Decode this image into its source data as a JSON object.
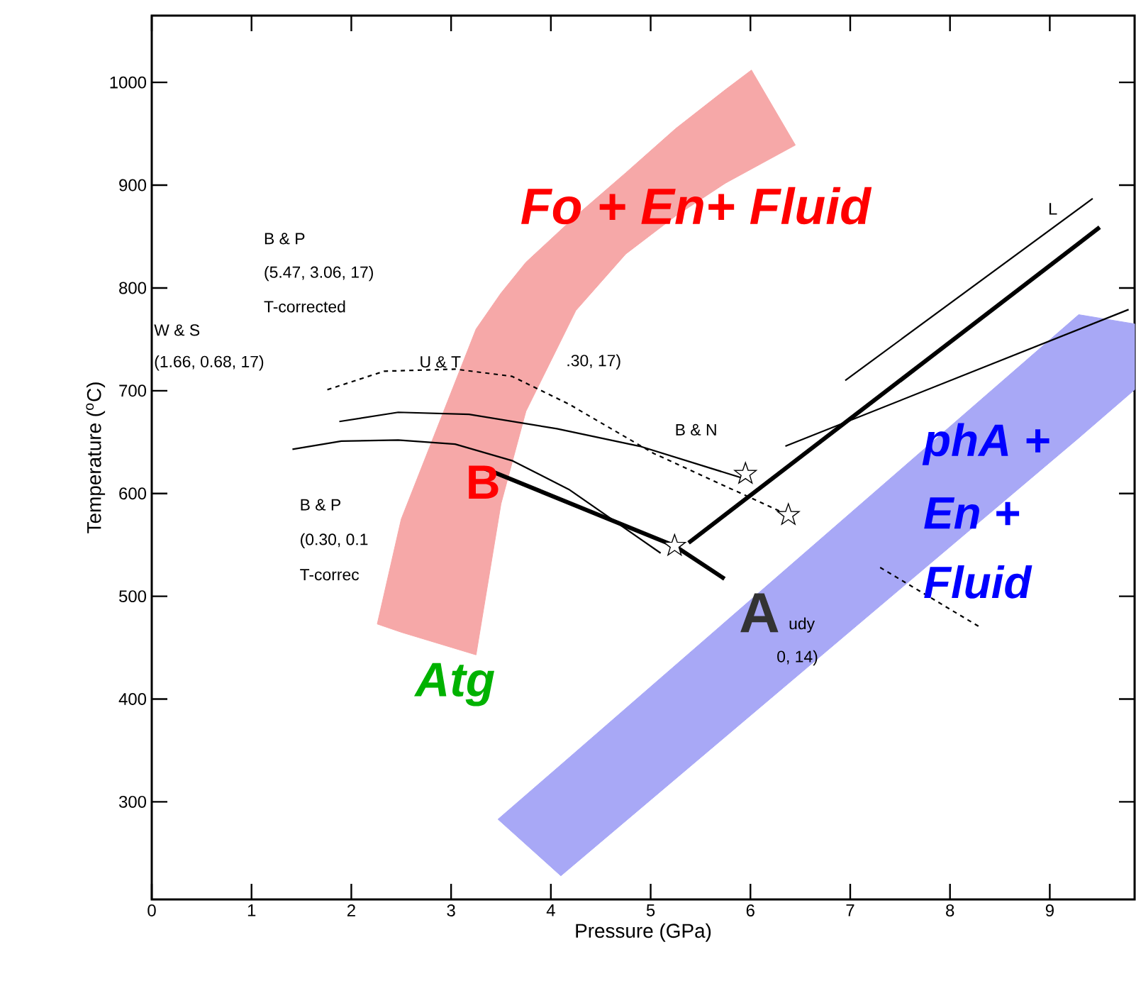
{
  "chart_data": {
    "type": "line",
    "xlabel": "Pressure (GPa)",
    "ylabel": "Temperature ($^{o}$C)",
    "xlim": [
      0,
      9.85
    ],
    "ylim": [
      205,
      1065
    ],
    "xticks": [
      0,
      1,
      2,
      3,
      4,
      5,
      6,
      7,
      8,
      9
    ],
    "yticks": [
      300,
      400,
      500,
      600,
      700,
      800,
      900,
      1000
    ],
    "series": [
      {
        "type": "area",
        "color": "#f6a8a8",
        "x": [
          2.26,
          2.5,
          3.25,
          3.5,
          3.75,
          4.25,
          4.75,
          5.25,
          5.75,
          6.01,
          6.45,
          5.75,
          5.25,
          4.75,
          4.25,
          3.75,
          3.5,
          3.25,
          2.5
        ],
        "values": [
          473,
          575,
          760,
          795,
          825,
          870,
          912,
          955,
          993,
          1012,
          939,
          902,
          870,
          833,
          778,
          680,
          590,
          443,
          465
        ]
      },
      {
        "type": "area",
        "color": "#a8a8f6",
        "x": [
          3.47,
          4.1,
          9.29,
          9.85,
          9.85,
          9.29,
          4.1
        ],
        "values": [
          283,
          336,
          774,
          765,
          701,
          654,
          228
        ]
      },
      {
        "color": "#000000",
        "x": [
          3.32,
          5.24,
          5.74
        ],
        "values": [
          625,
          549,
          517
        ]
      },
      {
        "color": "#000000",
        "x": [
          5.38,
          9.5
        ],
        "values": [
          552,
          859
        ]
      },
      {
        "color": "#000000",
        "x": [
          6.95,
          9.43
        ],
        "values": [
          710,
          887
        ]
      },
      {
        "color": "#000000",
        "x": [
          6.35,
          9.79
        ],
        "values": [
          646,
          779
        ]
      },
      {
        "color": "#000000",
        "x": [
          1.41,
          1.9,
          2.47,
          3.04,
          3.61,
          4.18,
          5.1
        ],
        "values": [
          643,
          651,
          652,
          648,
          632,
          604,
          542
        ]
      },
      {
        "color": "#000000",
        "x": [
          1.88,
          2.47,
          3.18,
          4.06,
          4.89,
          5.92
        ],
        "values": [
          670,
          679,
          677,
          663,
          646,
          615
        ]
      },
      {
        "color": "#000000",
        "line_style": "dashed",
        "x": [
          1.76,
          2.33,
          3.04,
          3.61,
          4.18,
          5.03,
          6.38,
          6.9,
          7.3,
          8.3
        ],
        "values": [
          701,
          719,
          721,
          714,
          687,
          639,
          579,
          null,
          528,
          470
        ]
      },
      {
        "type": "scatter",
        "color": "#000000",
        "marker": "star",
        "x": [
          5.24,
          5.95,
          6.38
        ],
        "values": [
          549,
          619,
          579
        ]
      }
    ],
    "annotations": [
      "B & P",
      "(5.47, 3.06, 17)",
      "T-corrected",
      "W & S",
      "(1.66, 0.68, 17)",
      "U & T",
      ".30, 17)",
      "B & N",
      "B & P",
      "(0.30, 0.1",
      "T-correc",
      "udy",
      "0, 14)",
      "L",
      "Fo + En+ Fluid",
      "B",
      "Atg",
      "A",
      "phA +",
      "En +",
      "Fluid"
    ]
  }
}
